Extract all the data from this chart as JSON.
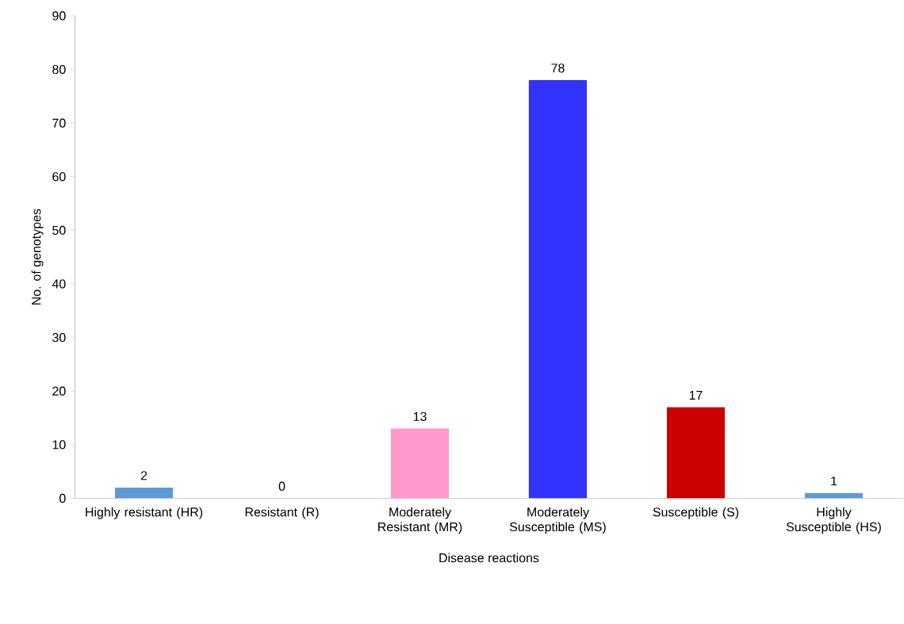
{
  "chart_data": {
    "type": "bar",
    "xlabel": "Disease reactions",
    "ylabel": "No. of genotypes",
    "categories": [
      "Highly resistant (HR)",
      "Resistant (R)",
      "Moderately Resistant (MR)",
      "Moderately Susceptible (MS)",
      "Susceptible (S)",
      "Highly Susceptible (HS)"
    ],
    "values": [
      2,
      0,
      13,
      78,
      17,
      1
    ],
    "colors": [
      "#5b9bd5",
      "#5b9bd5",
      "#ff99cc",
      "#3333ff",
      "#cc0000",
      "#5b9bd5"
    ],
    "ylim": [
      0,
      90
    ],
    "yticks": [
      0,
      10,
      20,
      30,
      40,
      50,
      60,
      70,
      80,
      90
    ],
    "data_labels": true,
    "grid": false
  }
}
